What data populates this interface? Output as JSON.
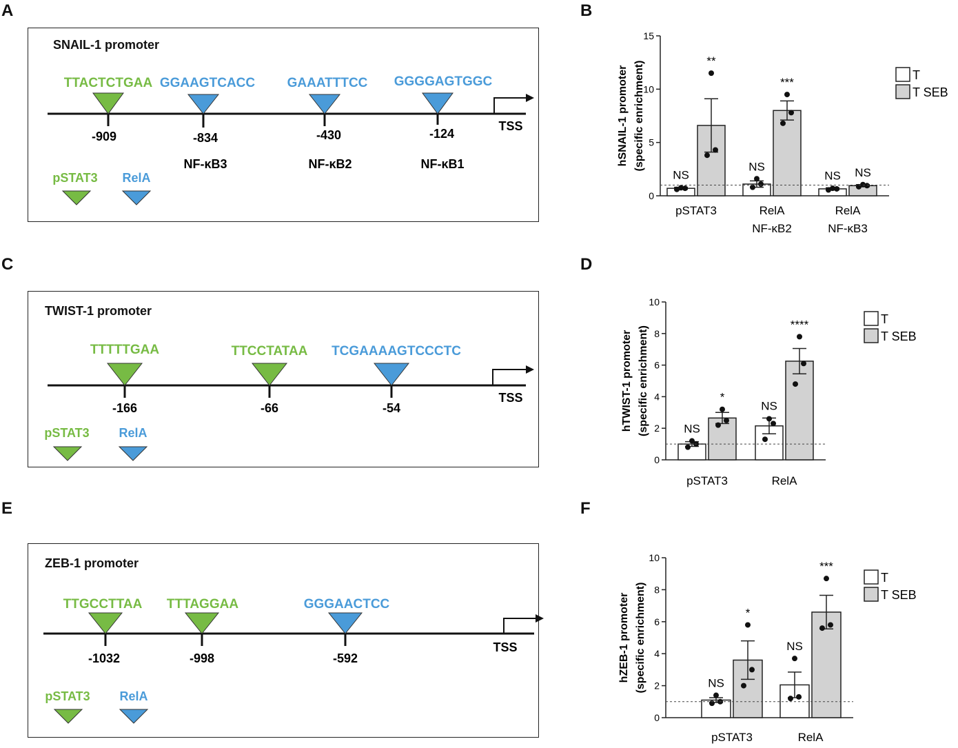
{
  "panel_letters": {
    "A": "A",
    "B": "B",
    "C": "C",
    "D": "D",
    "E": "E",
    "F": "F"
  },
  "colors": {
    "pstat3": "#77bb44",
    "rela": "#4a9bd9",
    "bar_T": "#ffffff",
    "bar_TSEB": "#d2d2d2"
  },
  "legend": {
    "T": "T",
    "TSEB": "T SEB"
  },
  "tss_label": "TSS",
  "panelA": {
    "title": "SNAIL-1 promoter",
    "sites": [
      {
        "seq": "TTACTCTGAA",
        "pos": "-909",
        "type": "pstat3",
        "nf": ""
      },
      {
        "seq": "GGAAGTCACC",
        "pos": "-834",
        "type": "rela",
        "nf": "NF-κB3"
      },
      {
        "seq": "GAAATTTCC",
        "pos": "-430",
        "type": "rela",
        "nf": "NF-κB2"
      },
      {
        "seq": "GGGGAGTGGC",
        "pos": "-124",
        "type": "rela",
        "nf": "NF-κB1"
      }
    ],
    "key": {
      "pstat3": "pSTAT3",
      "rela": "RelA"
    }
  },
  "panelC": {
    "title": "TWIST-1 promoter",
    "sites": [
      {
        "seq": "TTTTTGAA",
        "pos": "-166",
        "type": "pstat3"
      },
      {
        "seq": "TTCCTATAA",
        "pos": "-66",
        "type": "pstat3"
      },
      {
        "seq": "TCGAAAAGTCCCTC",
        "pos": "-54",
        "type": "rela"
      }
    ],
    "key": {
      "pstat3": "pSTAT3",
      "rela": "RelA"
    }
  },
  "panelE": {
    "title": "ZEB-1 promoter",
    "sites": [
      {
        "seq": "TTGCCTTAA",
        "pos": "-1032",
        "type": "pstat3"
      },
      {
        "seq": "TTTAGGAA",
        "pos": "-998",
        "type": "pstat3"
      },
      {
        "seq": "GGGAACTCC",
        "pos": "-592",
        "type": "rela"
      }
    ],
    "key": {
      "pstat3": "pSTAT3",
      "rela": "RelA"
    }
  },
  "chart_data": [
    {
      "panel": "B",
      "type": "bar",
      "ylabel": [
        "hSNAIL-1 promoter",
        "(specific enrichment)"
      ],
      "ylim": [
        0,
        15
      ],
      "yticks": [
        "0",
        "5",
        "10",
        "15"
      ],
      "ytick_values": [
        0,
        5,
        10,
        15
      ],
      "reference_line": 1,
      "groups": [
        {
          "label": [
            "pSTAT3",
            ""
          ],
          "bars": [
            {
              "series": "T",
              "value": 0.7,
              "err": 0.1,
              "sig": "NS",
              "points": [
                0.6,
                0.7,
                0.75
              ]
            },
            {
              "series": "T SEB",
              "value": 6.6,
              "err": 2.5,
              "sig": "**",
              "points": [
                3.8,
                4.3,
                11.5
              ]
            }
          ]
        },
        {
          "label": [
            "RelA",
            "NF-κB2"
          ],
          "bars": [
            {
              "series": "T",
              "value": 1.1,
              "err": 0.3,
              "sig": "NS",
              "points": [
                0.8,
                1.1,
                1.6
              ]
            },
            {
              "series": "T SEB",
              "value": 8.0,
              "err": 0.9,
              "sig": "***",
              "points": [
                6.8,
                7.8,
                9.5
              ]
            }
          ]
        },
        {
          "label": [
            "RelA",
            "NF-κB3"
          ],
          "bars": [
            {
              "series": "T",
              "value": 0.65,
              "err": 0.1,
              "sig": "NS",
              "points": [
                0.55,
                0.65,
                0.7
              ]
            },
            {
              "series": "T SEB",
              "value": 0.95,
              "err": 0.1,
              "sig": "NS",
              "points": [
                0.85,
                0.95,
                1.05
              ]
            }
          ]
        }
      ]
    },
    {
      "panel": "D",
      "type": "bar",
      "ylabel": [
        "hTWIST-1 promoter",
        "(specific enrichment)"
      ],
      "ylim": [
        0,
        10
      ],
      "yticks": [
        "0",
        "2",
        "4",
        "6",
        "8",
        "10"
      ],
      "ytick_values": [
        0,
        2,
        4,
        6,
        8,
        10
      ],
      "reference_line": 1,
      "groups": [
        {
          "label": [
            "pSTAT3",
            ""
          ],
          "bars": [
            {
              "series": "T",
              "value": 1.0,
              "err": 0.15,
              "sig": "NS",
              "points": [
                0.8,
                1.0,
                1.2
              ]
            },
            {
              "series": "T SEB",
              "value": 2.65,
              "err": 0.35,
              "sig": "*",
              "points": [
                2.2,
                2.5,
                3.2
              ]
            }
          ]
        },
        {
          "label": [
            "RelA",
            ""
          ],
          "bars": [
            {
              "series": "T",
              "value": 2.15,
              "err": 0.5,
              "sig": "NS",
              "points": [
                1.3,
                2.3,
                2.6
              ]
            },
            {
              "series": "T SEB",
              "value": 6.25,
              "err": 0.8,
              "sig": "****",
              "points": [
                4.8,
                6.1,
                7.8
              ]
            }
          ]
        }
      ]
    },
    {
      "panel": "F",
      "type": "bar",
      "ylabel": [
        "hZEB-1 promoter",
        "(specific enrichment)"
      ],
      "ylim": [
        0,
        10
      ],
      "yticks": [
        "0",
        "2",
        "4",
        "6",
        "8",
        "10"
      ],
      "ytick_values": [
        0,
        2,
        4,
        6,
        8,
        10
      ],
      "reference_line": 1,
      "groups": [
        {
          "label": [
            "pSTAT3",
            ""
          ],
          "bars": [
            {
              "series": "T",
              "value": 1.1,
              "err": 0.15,
              "sig": "NS",
              "points": [
                0.9,
                1.0,
                1.4
              ]
            },
            {
              "series": "T SEB",
              "value": 3.6,
              "err": 1.2,
              "sig": "*",
              "points": [
                2.0,
                3.0,
                5.8
              ]
            }
          ]
        },
        {
          "label": [
            "RelA",
            ""
          ],
          "bars": [
            {
              "series": "T",
              "value": 2.05,
              "err": 0.8,
              "sig": "NS",
              "points": [
                1.2,
                1.3,
                3.7
              ]
            },
            {
              "series": "T SEB",
              "value": 6.6,
              "err": 1.05,
              "sig": "***",
              "points": [
                5.6,
                5.8,
                8.7
              ]
            }
          ]
        }
      ]
    }
  ]
}
